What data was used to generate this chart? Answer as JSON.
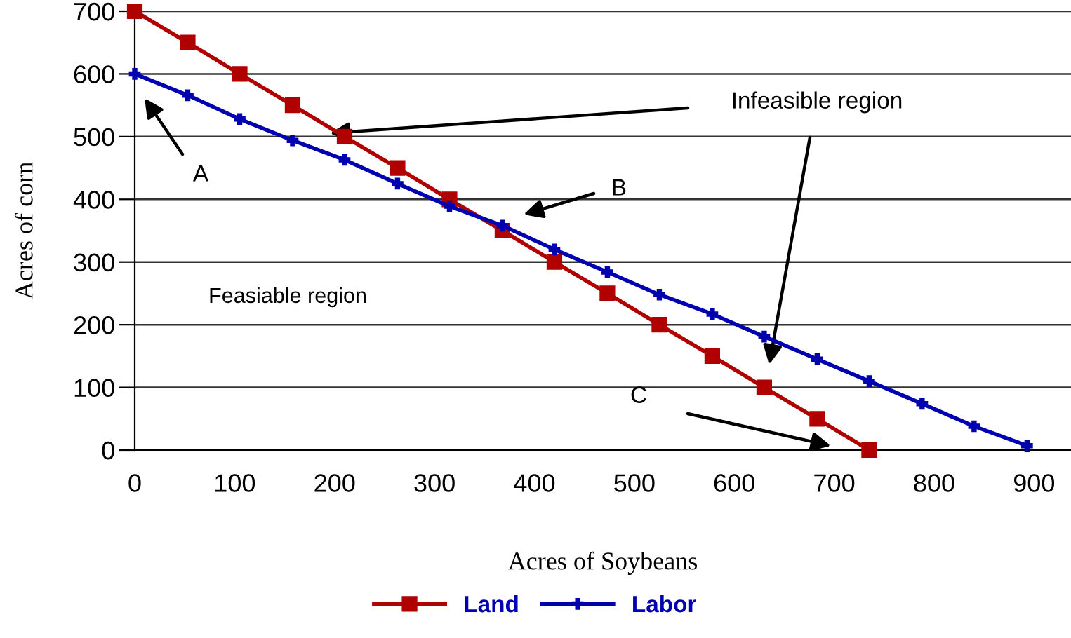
{
  "chart_data": {
    "type": "line",
    "xlabel": "Acres of Soybeans",
    "ylabel": "Acres of corn",
    "series": [
      {
        "name": "Land",
        "color": "#b00000",
        "marker": "square",
        "x": [
          0,
          53,
          105,
          158,
          210,
          263,
          315,
          368,
          420,
          473,
          525,
          578,
          630,
          683,
          735
        ],
        "values": [
          700,
          650,
          600,
          550,
          500,
          450,
          400,
          350,
          300,
          250,
          200,
          150,
          100,
          50,
          0
        ]
      },
      {
        "name": "Labor",
        "color": "#0000b0",
        "marker": "cross",
        "x": [
          0,
          53,
          105,
          158,
          210,
          263,
          315,
          368,
          420,
          473,
          525,
          578,
          630,
          683,
          735,
          788,
          840,
          893
        ],
        "values": [
          600,
          566,
          528,
          494,
          463,
          425,
          389,
          358,
          320,
          284,
          248,
          217,
          181,
          145,
          110,
          74,
          38,
          7
        ]
      }
    ],
    "xlim": [
      0,
      937
    ],
    "xticks": [
      0,
      100,
      200,
      300,
      400,
      500,
      600,
      700,
      800,
      900
    ],
    "ylim": [
      0,
      700
    ],
    "yticks": [
      0,
      100,
      200,
      300,
      400,
      500,
      600,
      700
    ],
    "grid": "y",
    "legend": "bottom",
    "annotations": [
      "Infeasible region",
      "A",
      "B",
      "C",
      "Feasiable region"
    ]
  }
}
